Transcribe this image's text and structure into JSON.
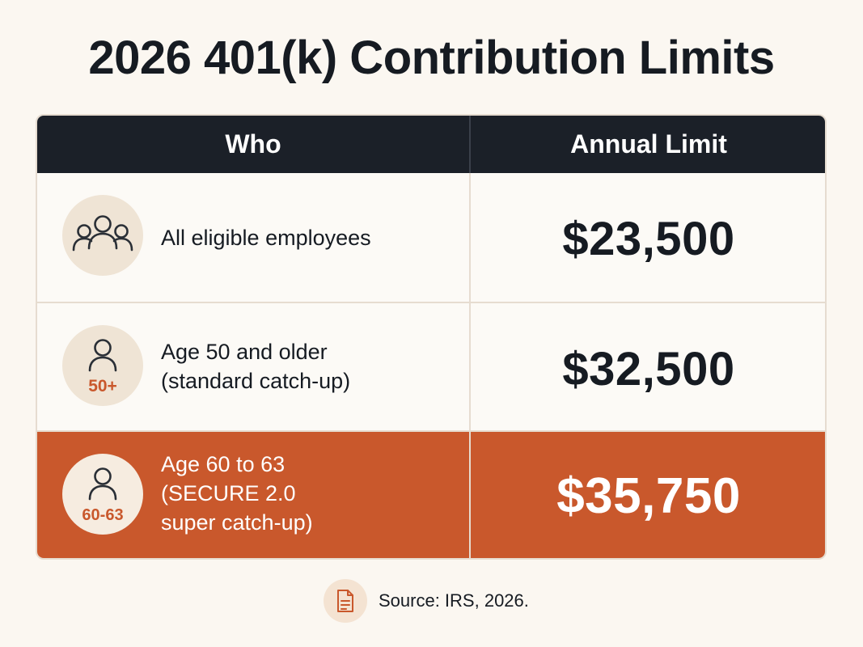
{
  "title": "2026 401(k) Contribution Limits",
  "table": {
    "headers": {
      "who": "Who",
      "limit": "Annual Limit"
    },
    "rows": [
      {
        "icon": "group-icon",
        "who_lines": [
          "All eligible employees"
        ],
        "limit": "$23,500",
        "highlighted": false
      },
      {
        "icon": "person-icon",
        "age_tag": "50+",
        "who_lines": [
          "Age 50 and older",
          "(standard catch-up)"
        ],
        "limit": "$32,500",
        "highlighted": false
      },
      {
        "icon": "person-icon",
        "age_tag": "60-63",
        "who_lines": [
          "Age 60 to 63",
          "(SECURE 2.0",
          "super catch-up)"
        ],
        "limit": "$35,750",
        "highlighted": true
      }
    ]
  },
  "source": {
    "icon": "document-icon",
    "text": "Source: IRS, 2026."
  },
  "colors": {
    "header_bg": "#1b2028",
    "highlight": "#c9582c",
    "background": "#fbf7f1"
  }
}
